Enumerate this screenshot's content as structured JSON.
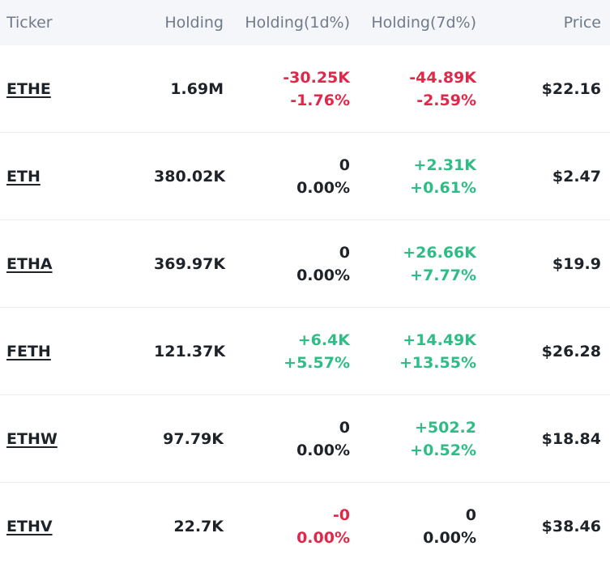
{
  "header": {
    "ticker": "Ticker",
    "holding": "Holding",
    "holding_1d": "Holding(1d%)",
    "holding_7d": "Holding(7d%)",
    "price": "Price"
  },
  "colors": {
    "negative": "#e0294a",
    "positive": "#2ebd85",
    "neutral": "#1e2329"
  },
  "rows": [
    {
      "ticker": "ETHE",
      "holding": "1.69M",
      "d1_abs": "-30.25K",
      "d1_pct": "-1.76%",
      "d1_state": "neg",
      "d7_abs": "-44.89K",
      "d7_pct": "-2.59%",
      "d7_state": "neg",
      "price": "$22.16"
    },
    {
      "ticker": "ETH",
      "holding": "380.02K",
      "d1_abs": "0",
      "d1_pct": "0.00%",
      "d1_state": "neutral",
      "d7_abs": "+2.31K",
      "d7_pct": "+0.61%",
      "d7_state": "pos",
      "price": "$2.47"
    },
    {
      "ticker": "ETHA",
      "holding": "369.97K",
      "d1_abs": "0",
      "d1_pct": "0.00%",
      "d1_state": "neutral",
      "d7_abs": "+26.66K",
      "d7_pct": "+7.77%",
      "d7_state": "pos",
      "price": "$19.9"
    },
    {
      "ticker": "FETH",
      "holding": "121.37K",
      "d1_abs": "+6.4K",
      "d1_pct": "+5.57%",
      "d1_state": "pos",
      "d7_abs": "+14.49K",
      "d7_pct": "+13.55%",
      "d7_state": "pos",
      "price": "$26.28"
    },
    {
      "ticker": "ETHW",
      "holding": "97.79K",
      "d1_abs": "0",
      "d1_pct": "0.00%",
      "d1_state": "neutral",
      "d7_abs": "+502.2",
      "d7_pct": "+0.52%",
      "d7_state": "pos",
      "price": "$18.84"
    },
    {
      "ticker": "ETHV",
      "holding": "22.7K",
      "d1_abs": "-0",
      "d1_pct": "0.00%",
      "d1_state": "neg",
      "d7_abs": "0",
      "d7_pct": "0.00%",
      "d7_state": "neutral",
      "price": "$38.46"
    }
  ]
}
